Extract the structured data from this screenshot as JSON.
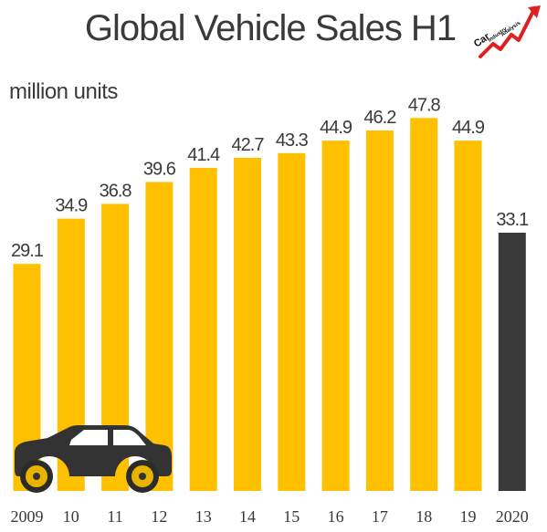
{
  "chart_data": {
    "type": "bar",
    "title": "Global Vehicle Sales H1",
    "ylabel": "million units",
    "xlabel": "",
    "categories": [
      "2009",
      "10",
      "11",
      "12",
      "13",
      "14",
      "15",
      "16",
      "17",
      "18",
      "19",
      "2020"
    ],
    "values": [
      29.1,
      34.9,
      36.8,
      39.6,
      41.4,
      42.7,
      43.3,
      44.9,
      46.2,
      47.8,
      44.9,
      33.1
    ],
    "value_labels": [
      "29.1",
      "34.9",
      "36.8",
      "39.6",
      "41.4",
      "42.7",
      "43.3",
      "44.9",
      "46.2",
      "47.8",
      "44.9",
      "33.1"
    ],
    "ylim": [
      0,
      50
    ],
    "grid": false,
    "legend": "none",
    "colors": {
      "bar": "#FFC000",
      "highlight_bar": "#3A3A3A",
      "text": "#3A3A3A",
      "car_body": "#333333"
    },
    "highlight_category": "2020"
  },
  "logo": {
    "icon": "car-industry-analysis-logo-icon",
    "text": [
      "Car",
      "Industry",
      "Analysis"
    ]
  },
  "decoration": {
    "icon": "car-silhouette-icon"
  }
}
